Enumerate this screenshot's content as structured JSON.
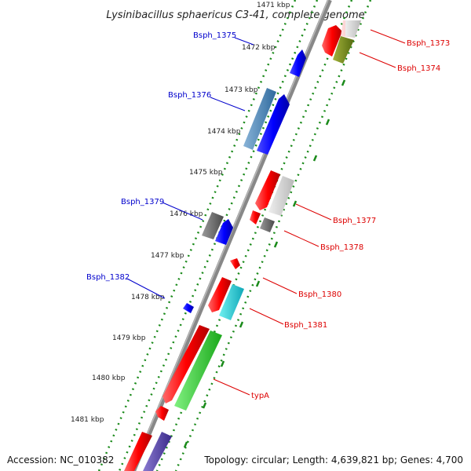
{
  "title": "Lysinibacillus sphaericus C3-41, complete genome",
  "footer": {
    "accession": "Accession: NC_010382",
    "summary": "Topology: circular; Length: 4,639,821 bp; Genes: 4,700"
  },
  "ticks": [
    "1471 kbp",
    "1472 kbp",
    "1473 kbp",
    "1474 kbp",
    "1475 kbp",
    "1476 kbp",
    "1477 kbp",
    "1478 kbp",
    "1479 kbp",
    "1480 kbp",
    "1481 kbp"
  ],
  "colors": {
    "backbone": "#888888",
    "tick_dots": "#1a8a1a",
    "left_label": "#0000cc",
    "right_label": "#dd0000"
  },
  "labels_left": [
    "Bsph_1375",
    "Bsph_1376",
    "Bsph_1379",
    "Bsph_1382"
  ],
  "labels_right": [
    "Bsph_1373",
    "Bsph_1374",
    "Bsph_1377",
    "Bsph_1378",
    "Bsph_1380",
    "Bsph_1381",
    "typA"
  ],
  "gene_colors": [
    "red",
    "pink",
    "olive",
    "blue",
    "steelblue",
    "silver",
    "gray",
    "cyan",
    "green",
    "slateblue"
  ]
}
